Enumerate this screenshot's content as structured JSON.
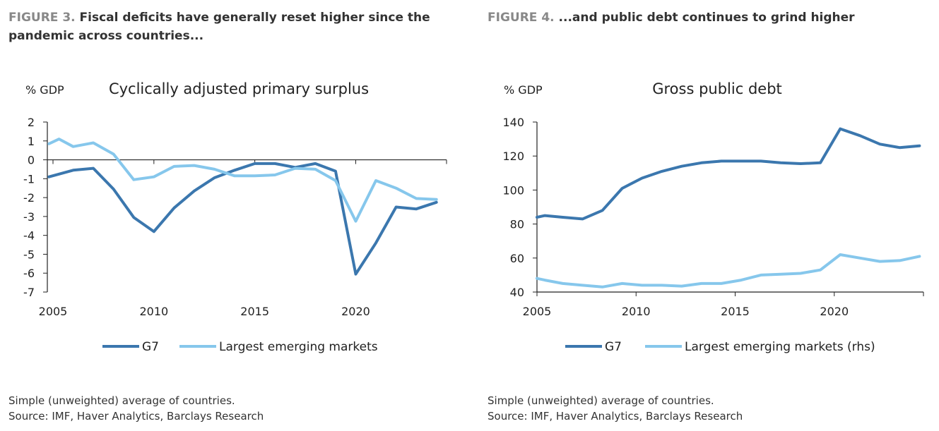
{
  "colors": {
    "g7": "#3b77ae",
    "em": "#86c7ec",
    "axis": "#222222"
  },
  "figures": [
    {
      "label": "FIGURE 3.",
      "title": "Fiscal deficits have generally reset higher since the pandemic across countries...",
      "notes": [
        "Simple (unweighted) average of countries.",
        "Source: IMF, Haver Analytics, Barclays Research"
      ]
    },
    {
      "label": "FIGURE 4.",
      "title": "...and public debt continues to grind higher",
      "notes": [
        "Simple (unweighted) average of countries.",
        "Source: IMF, Haver Analytics, Barclays Research"
      ]
    }
  ],
  "chart_data": [
    {
      "type": "line",
      "title": "Cyclically adjusted primary surplus",
      "ylabel": "% GDP",
      "ylim": [
        -7,
        2
      ],
      "yticks": [
        "2",
        "1",
        "0",
        "-1",
        "-2",
        "-3",
        "-4",
        "-5",
        "-6",
        "-7"
      ],
      "xlim": [
        2005,
        2024.5
      ],
      "xticks": [
        "2005",
        "2010",
        "2015",
        "2020"
      ],
      "x": [
        2004.8,
        2006,
        2007,
        2008,
        2009,
        2010,
        2011,
        2012,
        2013,
        2014,
        2015,
        2016,
        2017,
        2018,
        2019,
        2020,
        2021,
        2022,
        2023,
        2024
      ],
      "series": [
        {
          "name": "G7",
          "values": [
            -0.9,
            -0.55,
            -0.45,
            -1.55,
            -3.05,
            -3.8,
            -2.55,
            -1.65,
            -0.95,
            -0.55,
            -0.2,
            -0.2,
            -0.4,
            -0.2,
            -0.6,
            -6.05,
            -4.4,
            -2.5,
            -2.6,
            -2.25
          ]
        },
        {
          "name": "Largest emerging markets",
          "values": [
            0.85,
            0.7,
            0.9,
            0.3,
            -1.05,
            -0.9,
            -0.35,
            -0.3,
            -0.5,
            -0.85,
            -0.85,
            -0.8,
            -0.45,
            -0.5,
            -1.1,
            -3.25,
            -1.1,
            -1.5,
            -2.05,
            -2.1
          ]
        }
      ],
      "extra_point": {
        "x": 2005.3,
        "em": 1.1
      },
      "legend": [
        "G7",
        "Largest emerging markets"
      ],
      "zero_line": true
    },
    {
      "type": "line",
      "title": "Gross public debt",
      "ylabel": "% GDP",
      "ylim": [
        40,
        140
      ],
      "yticks": [
        "140",
        "120",
        "100",
        "80",
        "60",
        "40"
      ],
      "xlim": [
        2005,
        2024.5
      ],
      "xticks": [
        "2005",
        "2010",
        "2015",
        "2020"
      ],
      "x": [
        2005,
        2005.4,
        2006.3,
        2007.3,
        2008.3,
        2009.3,
        2010.3,
        2011.3,
        2012.3,
        2013.3,
        2014.3,
        2015.3,
        2016.3,
        2017.3,
        2018.3,
        2019.3,
        2020.3,
        2021.3,
        2022.3,
        2023.3,
        2024.3
      ],
      "series": [
        {
          "name": "G7",
          "values": [
            84,
            85,
            84,
            83,
            88,
            101,
            107,
            111,
            114,
            116,
            117,
            117,
            117,
            116,
            115.5,
            116,
            136,
            132,
            127,
            125,
            126
          ]
        },
        {
          "name": "Largest emerging markets (rhs)",
          "values": [
            48,
            47,
            45,
            44,
            43,
            45,
            44,
            44,
            43.5,
            45,
            45,
            47,
            50,
            50.5,
            51,
            53,
            62,
            60,
            58,
            58.5,
            61
          ]
        }
      ],
      "legend": [
        "G7",
        "Largest emerging markets (rhs)"
      ],
      "zero_line": false
    }
  ]
}
